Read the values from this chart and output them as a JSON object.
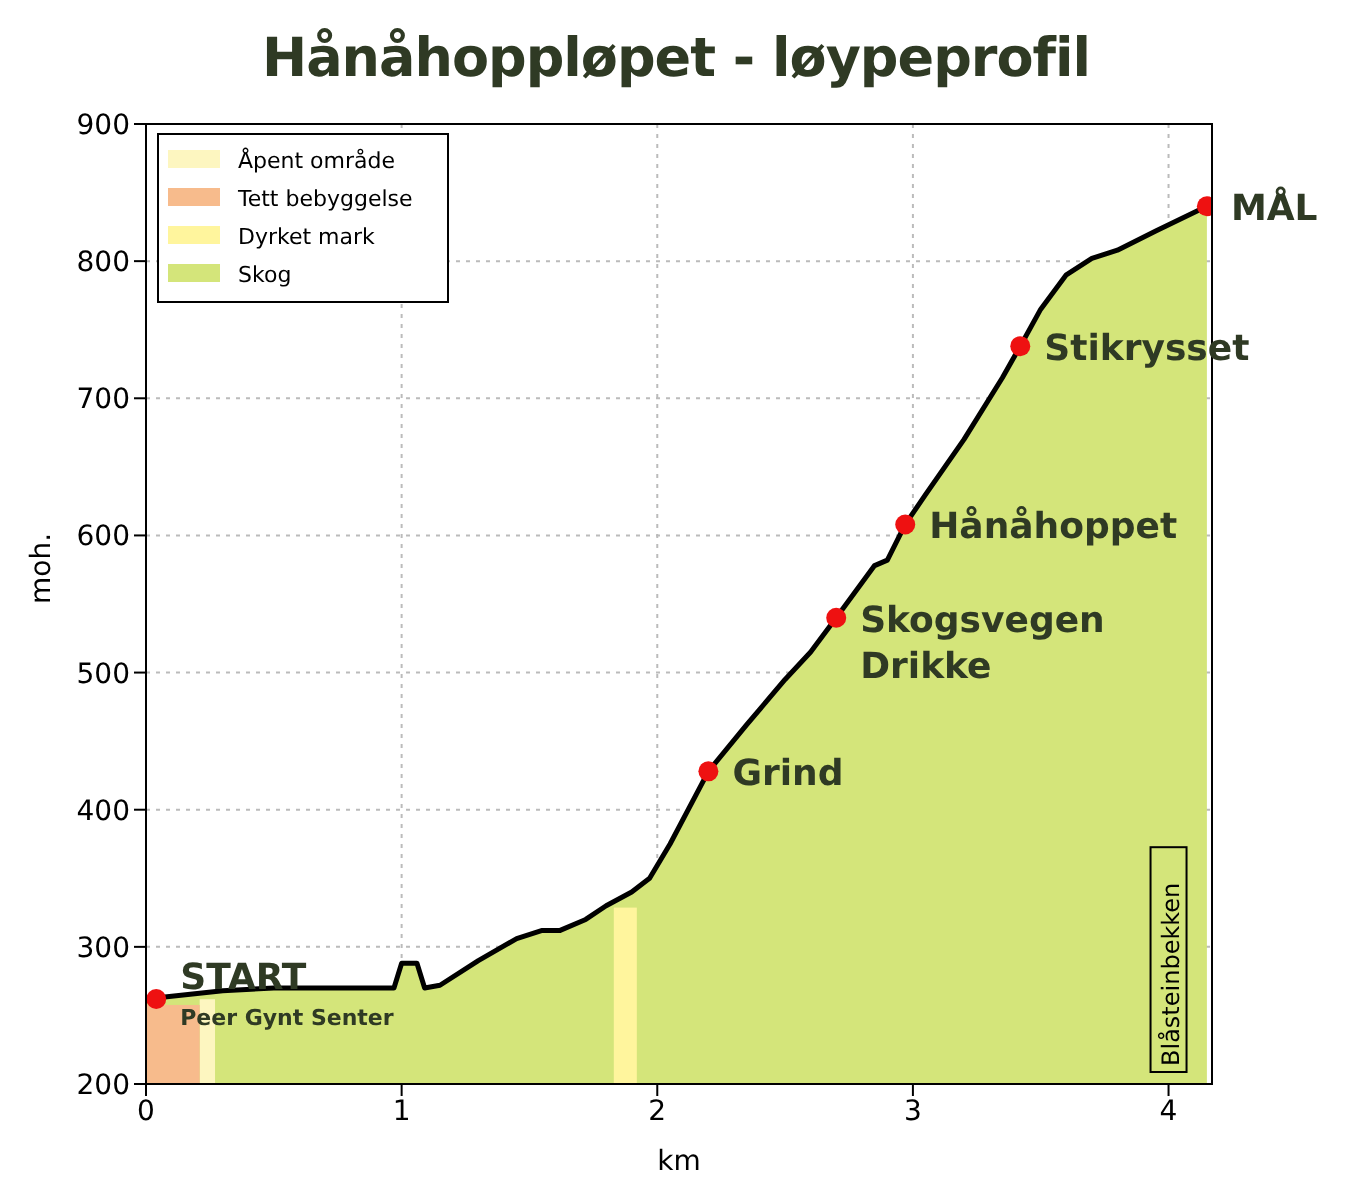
{
  "chart_data": {
    "type": "area",
    "title": "Hånåhoppløpet - løypeprofil",
    "xlabel": "km",
    "ylabel": "moh.",
    "xlim": [
      0,
      4.17
    ],
    "ylim": [
      200,
      900
    ],
    "xticks": [
      0,
      1,
      2,
      3,
      4
    ],
    "yticks": [
      200,
      300,
      400,
      500,
      600,
      700,
      800,
      900
    ],
    "grid": true,
    "legend": "top left",
    "series": [
      {
        "name": "Skog",
        "color": "#d4e57a",
        "x": [
          0,
          0.3,
          0.5,
          0.97,
          1.0,
          1.06,
          1.09,
          1.15,
          1.3,
          1.45,
          1.55,
          1.62,
          1.72,
          1.8,
          1.9,
          1.97,
          2.05,
          2.2,
          2.35,
          2.5,
          2.6,
          2.7,
          2.85,
          2.9,
          2.97,
          3.05,
          3.2,
          3.35,
          3.42,
          3.5,
          3.6,
          3.7,
          3.8,
          3.95,
          4.15
        ],
        "values": [
          262,
          268,
          270,
          270,
          288,
          288,
          270,
          272,
          290,
          306,
          312,
          312,
          320,
          330,
          340,
          350,
          375,
          428,
          462,
          495,
          515,
          540,
          578,
          582,
          608,
          630,
          670,
          715,
          738,
          765,
          790,
          802,
          808,
          822,
          840
        ]
      },
      {
        "type": "scatter",
        "color": "#ee1111",
        "marker": "circle",
        "x": [
          0.04,
          2.2,
          2.7,
          2.97,
          3.42,
          4.15
        ],
        "values": [
          262,
          428,
          540,
          608,
          738,
          840
        ]
      }
    ],
    "bands": [
      {
        "axis": "x",
        "from": 0.21,
        "to": 0.27,
        "label": "Åpent område",
        "color": "#fdf6c0"
      },
      {
        "axis": "x",
        "from": 0,
        "to": 0.21,
        "label": "Tett bebyggelse",
        "color": "#f7bb8c"
      },
      {
        "axis": "x",
        "from": 1.83,
        "to": 1.92,
        "label": "Dyrket mark",
        "color": "#fff59d"
      }
    ],
    "annotations": [
      {
        "text": "START",
        "x": 0.04,
        "y": 262
      },
      {
        "text": "Peer Gynt Senter",
        "x": 0.04,
        "y": 262
      },
      {
        "text": "Grind",
        "x": 2.2,
        "y": 428
      },
      {
        "text": "Skogsvegen\nDrikke",
        "x": 2.7,
        "y": 540
      },
      {
        "text": "Hånåhoppet",
        "x": 2.97,
        "y": 608
      },
      {
        "text": "Stikrysset",
        "x": 3.42,
        "y": 738
      },
      {
        "text": "MÅL",
        "x": 4.15,
        "y": 840
      },
      {
        "text": "Blåsteinbekken",
        "x": 4.0,
        "y": 200
      }
    ]
  }
}
